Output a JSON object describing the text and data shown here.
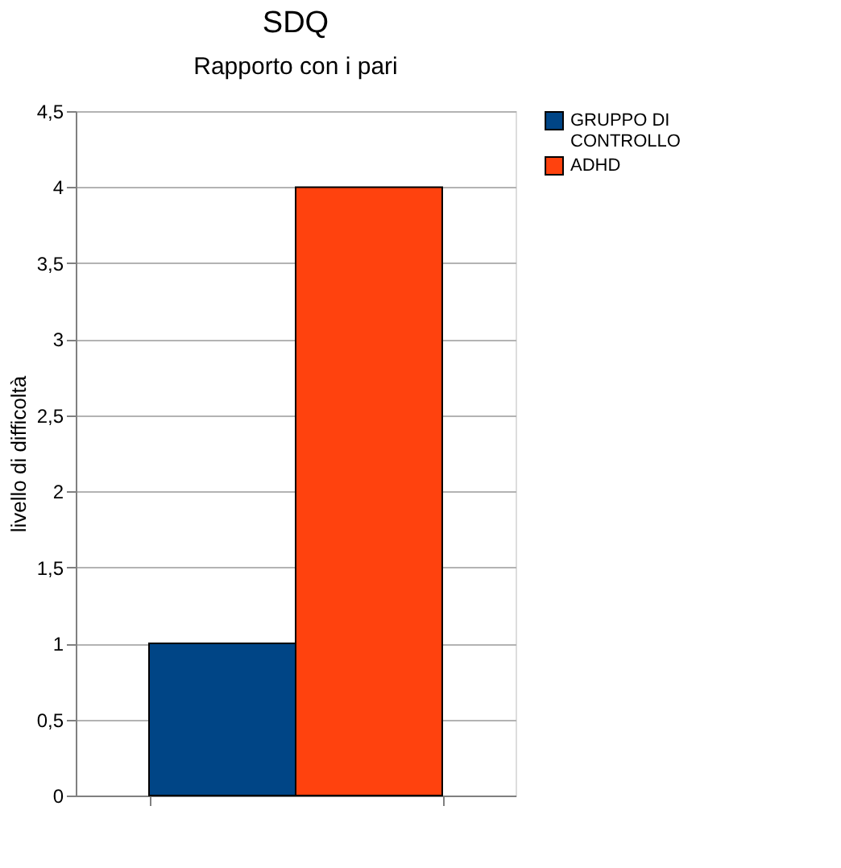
{
  "chart_data": {
    "type": "bar",
    "title": "SDQ",
    "subtitle": "Rapporto con i pari",
    "ylabel": "livello di difficoltà",
    "categories": [
      null
    ],
    "series": [
      {
        "name": "GRUPPO DI CONTROLLO",
        "color": "#004586",
        "values": [
          1
        ]
      },
      {
        "name": "ADHD",
        "color": "#ff420e",
        "values": [
          4
        ]
      }
    ],
    "ylim": [
      0,
      4.5
    ],
    "yticks": [
      0,
      {
        "value": 0.5,
        "label": "0,5"
      },
      1,
      {
        "value": 1.5,
        "label": "1,5"
      },
      2,
      {
        "value": 2.5,
        "label": "2,5"
      },
      3,
      {
        "value": 3.5,
        "label": "3,5"
      },
      4,
      {
        "value": 4.5,
        "label": "4,5"
      }
    ],
    "grid": "y",
    "legend": "right"
  }
}
